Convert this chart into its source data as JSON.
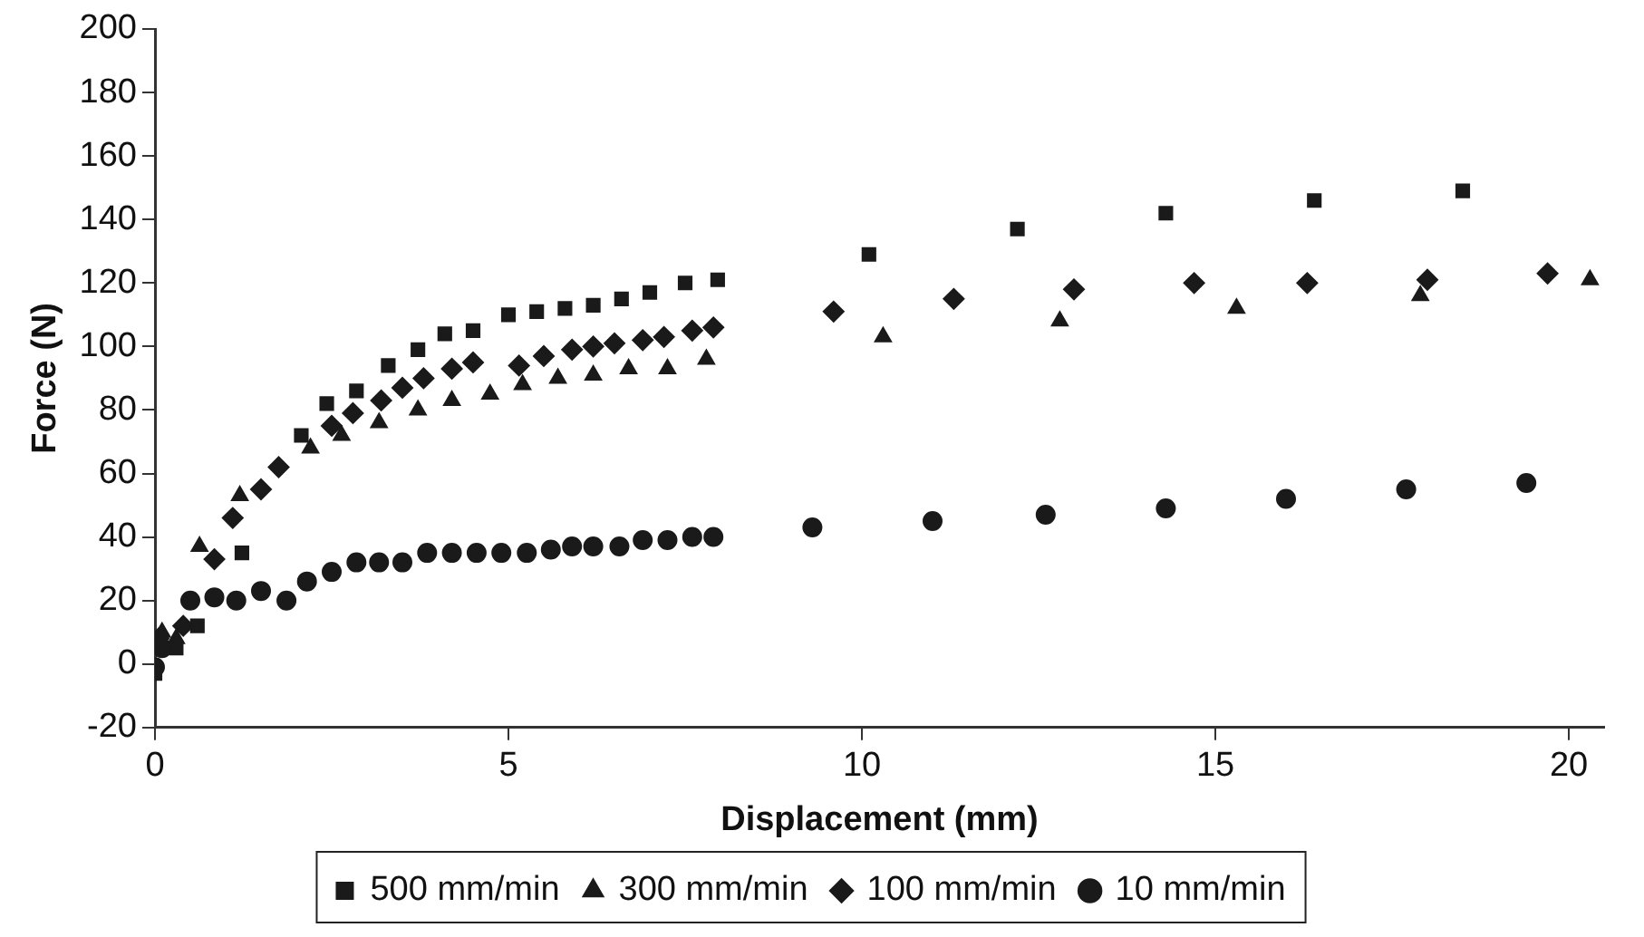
{
  "chart_data": {
    "type": "scatter",
    "xlabel": "Displacement (mm)",
    "ylabel": "Force (N)",
    "xlim": [
      0,
      20.5
    ],
    "ylim": [
      -20,
      200
    ],
    "xticks": [
      0,
      5,
      10,
      15,
      20
    ],
    "yticks": [
      -20,
      0,
      20,
      40,
      60,
      80,
      100,
      120,
      140,
      160,
      180,
      200
    ],
    "grid": false,
    "legend": "bottom",
    "series": [
      {
        "name": "500 mm/min",
        "color": "#1a1a1a",
        "marker": "square",
        "x": [
          0,
          0.3,
          0.6,
          1.23,
          2.07,
          2.43,
          2.85,
          3.3,
          3.72,
          4.1,
          4.5,
          5.0,
          5.4,
          5.8,
          6.2,
          6.6,
          7.0,
          7.5,
          7.96,
          10.1,
          12.2,
          14.3,
          16.4,
          18.5
        ],
        "values": [
          -3,
          5,
          12,
          35,
          72,
          82,
          86,
          94,
          99,
          104,
          105,
          110,
          111,
          112,
          113,
          115,
          117,
          120,
          121,
          129,
          137,
          142,
          146,
          149
        ]
      },
      {
        "name": "300 mm/min",
        "color": "#1a1a1a",
        "marker": "triangle",
        "x": [
          0.1,
          0.3,
          0.63,
          1.2,
          2.2,
          2.64,
          3.17,
          3.72,
          4.2,
          4.74,
          5.2,
          5.7,
          6.2,
          6.7,
          7.25,
          7.8,
          10.3,
          12.8,
          15.3,
          17.9,
          20.3
        ],
        "values": [
          10,
          8,
          37,
          53,
          68,
          72,
          76,
          80,
          83,
          85,
          88,
          90,
          91,
          93,
          93,
          96,
          103,
          108,
          112,
          116,
          121
        ]
      },
      {
        "name": "100 mm/min",
        "color": "#1a1a1a",
        "marker": "diamond",
        "x": [
          0.05,
          0.4,
          0.84,
          1.1,
          1.5,
          1.75,
          2.15,
          2.5,
          2.8,
          3.2,
          3.5,
          3.8,
          4.2,
          4.5,
          4.76,
          5.15,
          5.5,
          5.9,
          6.2,
          6.5,
          6.9,
          7.2,
          7.6,
          7.9,
          9.6,
          11.3,
          13.0,
          14.7,
          16.3,
          18.0,
          19.7
        ],
        "values": [
          8,
          12,
          33,
          46,
          55,
          62,
          null,
          75,
          79,
          83,
          87,
          90,
          93,
          95,
          null,
          94,
          97,
          99,
          100,
          101,
          102,
          103,
          105,
          106,
          111,
          115,
          118,
          120,
          120,
          121,
          123
        ]
      },
      {
        "name": "10 mm/min",
        "color": "#1a1a1a",
        "marker": "circle",
        "x": [
          0,
          0.1,
          0.5,
          0.84,
          1.15,
          1.5,
          1.86,
          2.15,
          2.5,
          2.85,
          3.17,
          3.5,
          3.85,
          4.2,
          4.55,
          4.9,
          5.26,
          5.6,
          5.9,
          6.2,
          6.57,
          6.9,
          7.25,
          7.6,
          7.9,
          9.3,
          11.0,
          12.6,
          14.3,
          16.0,
          17.7,
          19.4
        ],
        "values": [
          -1,
          5,
          20,
          21,
          20,
          23,
          20,
          26,
          29,
          32,
          32,
          32,
          35,
          35,
          35,
          35,
          35,
          36,
          37,
          37,
          37,
          39,
          39,
          40,
          40,
          43,
          45,
          47,
          49,
          52,
          55,
          57
        ]
      }
    ]
  }
}
